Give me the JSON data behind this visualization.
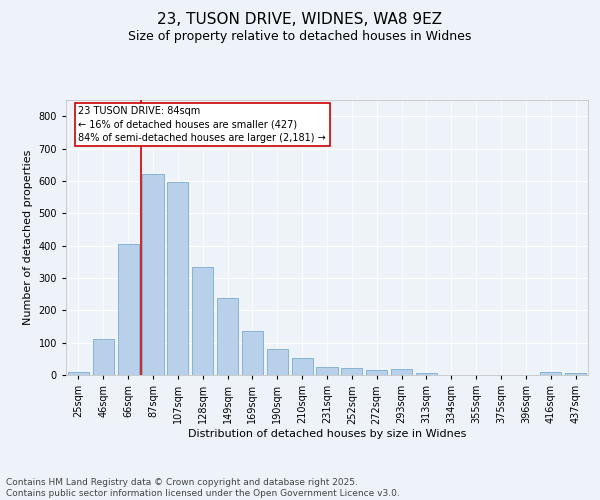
{
  "title1": "23, TUSON DRIVE, WIDNES, WA8 9EZ",
  "title2": "Size of property relative to detached houses in Widnes",
  "xlabel": "Distribution of detached houses by size in Widnes",
  "ylabel": "Number of detached properties",
  "categories": [
    "25sqm",
    "46sqm",
    "66sqm",
    "87sqm",
    "107sqm",
    "128sqm",
    "149sqm",
    "169sqm",
    "190sqm",
    "210sqm",
    "231sqm",
    "252sqm",
    "272sqm",
    "293sqm",
    "313sqm",
    "334sqm",
    "355sqm",
    "375sqm",
    "396sqm",
    "416sqm",
    "437sqm"
  ],
  "values": [
    8,
    110,
    405,
    620,
    596,
    335,
    237,
    137,
    80,
    53,
    24,
    22,
    17,
    18,
    5,
    0,
    0,
    0,
    0,
    8,
    7
  ],
  "bar_color": "#b8d0ea",
  "bar_edge_color": "#7aadcf",
  "vline_color": "#cc0000",
  "annotation_text": "23 TUSON DRIVE: 84sqm\n← 16% of detached houses are smaller (427)\n84% of semi-detached houses are larger (2,181) →",
  "annotation_box_facecolor": "#ffffff",
  "annotation_box_edgecolor": "#cc0000",
  "ylim": [
    0,
    850
  ],
  "yticks": [
    0,
    100,
    200,
    300,
    400,
    500,
    600,
    700,
    800
  ],
  "background_color": "#eef2f9",
  "grid_color": "#ffffff",
  "footer_text": "Contains HM Land Registry data © Crown copyright and database right 2025.\nContains public sector information licensed under the Open Government Licence v3.0.",
  "title_fontsize": 11,
  "subtitle_fontsize": 9,
  "label_fontsize": 8,
  "tick_fontsize": 7,
  "footer_fontsize": 6.5
}
